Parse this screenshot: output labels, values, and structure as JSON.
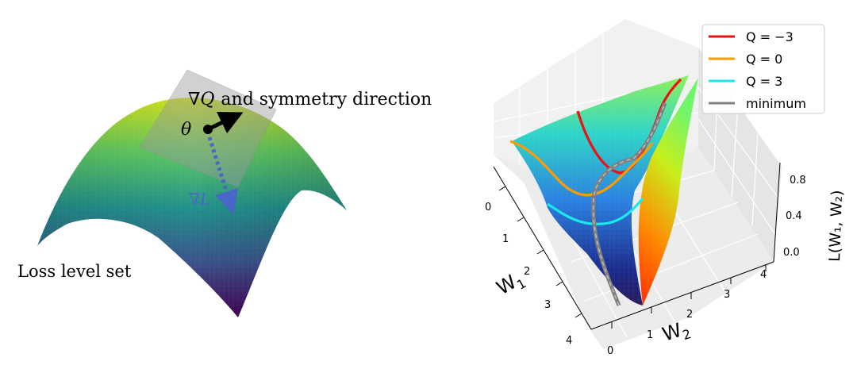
{
  "left_panel": {
    "title_grad_symbol": "∇",
    "title_Q": "Q",
    "title_rest": "and symmetry direction",
    "theta_label": "θ",
    "gradL_symbol": "∇",
    "gradL_letter": "L",
    "loss_label": "Loss level set",
    "colors": {
      "gradQ_arrow": "#000000",
      "gradL_arrow": "#4a66c8",
      "plane": "#9a9a9a"
    }
  },
  "right_panel": {
    "legend": {
      "items": [
        {
          "label": "Q = −3",
          "color": "#ee1111"
        },
        {
          "label": "Q = 0",
          "color": "#ff9b00"
        },
        {
          "label": "Q = 3",
          "color": "#1ae8ea"
        },
        {
          "label": "minimum",
          "color": "#808080"
        }
      ]
    },
    "axes": {
      "w1_label": "W",
      "w1_sub": "1",
      "w1_ticks": [
        "0",
        "1",
        "2",
        "3",
        "4"
      ],
      "w2_label": "W",
      "w2_sub": "2",
      "w2_ticks": [
        "0",
        "1",
        "2",
        "3",
        "4"
      ],
      "z_label": "L(W₁, W₂)",
      "z_ticks": [
        "0.0",
        "0.4",
        "0.8"
      ]
    }
  }
}
